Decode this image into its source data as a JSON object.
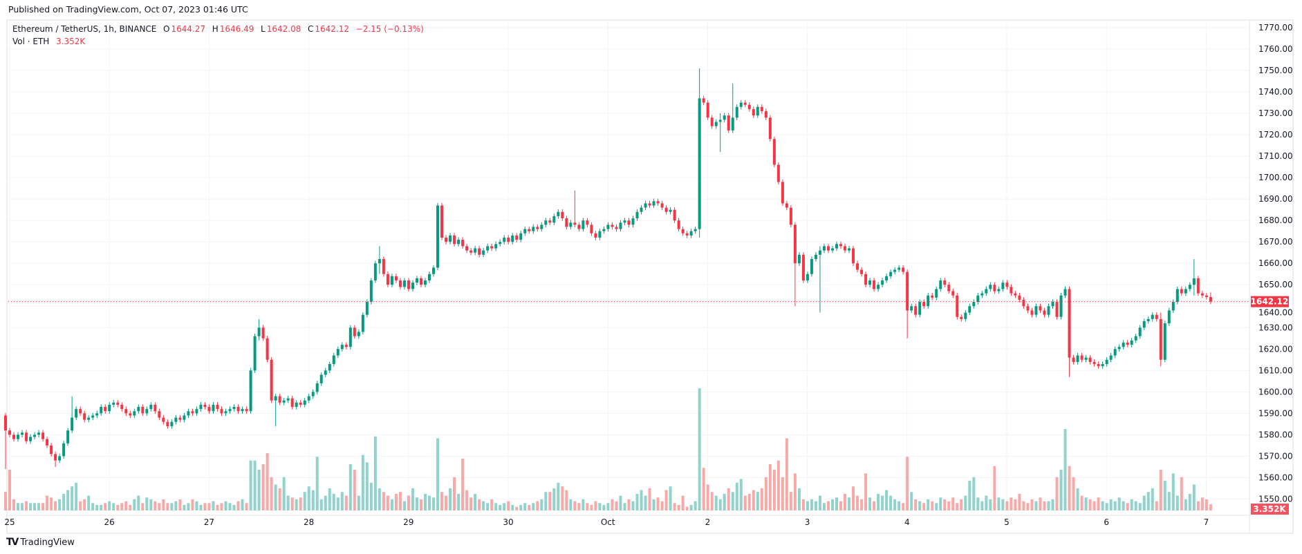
{
  "header": {
    "published": "Published on TradingView.com, Oct 07, 2023 01:46 UTC"
  },
  "legend": {
    "symbol": "Ethereum / TetherUS, 1h, BINANCE",
    "o_label": "O",
    "o": "1644.27",
    "h_label": "H",
    "h": "1646.49",
    "l_label": "L",
    "l": "1642.08",
    "c_label": "C",
    "c": "1642.12",
    "change": "−2.15 (−0.13%)",
    "vol_label": "Vol · ETH",
    "vol": "3.352K"
  },
  "footer": {
    "logo_text": "TradingView"
  },
  "colors": {
    "up": "#089981",
    "down": "#f23645",
    "vol_up": "#92d2cc",
    "vol_down": "#f7a9a7",
    "grid": "#f0f3fa",
    "vol_badge": "#f7525f"
  },
  "chart_data": {
    "type": "candlestick",
    "title": "Ethereum / TetherUS, 1h, BINANCE",
    "interval": "1h",
    "first_candle": "Sep 24 23:00",
    "ylim": [
      1545,
      1775
    ],
    "yticks": [
      "1770.00",
      "1760.00",
      "1750.00",
      "1740.00",
      "1730.00",
      "1720.00",
      "1710.00",
      "1700.00",
      "1690.00",
      "1680.00",
      "1670.00",
      "1660.00",
      "1650.00",
      "1640.00",
      "1630.00",
      "1620.00",
      "1610.00",
      "1600.00",
      "1590.00",
      "1580.00",
      "1570.00",
      "1560.00",
      "1550.00"
    ],
    "xticks": [
      "25",
      "26",
      "27",
      "28",
      "29",
      "30",
      "Oct",
      "2",
      "3",
      "4",
      "5",
      "6",
      "7"
    ],
    "grid": true,
    "first_open": 1589,
    "close": [
      1582,
      1580,
      1578,
      1580,
      1581,
      1577,
      1579,
      1580,
      1581,
      1578,
      1575,
      1571,
      1568,
      1570,
      1576,
      1582,
      1588,
      1592,
      1590,
      1587,
      1588,
      1589,
      1590,
      1593,
      1591,
      1594,
      1595,
      1594,
      1592,
      1590,
      1589,
      1591,
      1593,
      1590,
      1592,
      1594,
      1591,
      1588,
      1586,
      1584,
      1586,
      1588,
      1587,
      1589,
      1591,
      1590,
      1592,
      1594,
      1593,
      1591,
      1594,
      1592,
      1590,
      1591,
      1592,
      1593,
      1591,
      1592,
      1591,
      1610,
      1626,
      1630,
      1625,
      1615,
      1596,
      1598,
      1595,
      1596,
      1597,
      1593,
      1595,
      1594,
      1596,
      1598,
      1600,
      1604,
      1608,
      1610,
      1613,
      1617,
      1620,
      1622,
      1621,
      1630,
      1626,
      1628,
      1636,
      1642,
      1652,
      1660,
      1662,
      1655,
      1650,
      1654,
      1652,
      1649,
      1652,
      1648,
      1651,
      1653,
      1650,
      1652,
      1655,
      1658,
      1687,
      1672,
      1670,
      1673,
      1669,
      1671,
      1668,
      1666,
      1665,
      1667,
      1664,
      1666,
      1668,
      1667,
      1669,
      1670,
      1672,
      1670,
      1673,
      1671,
      1674,
      1676,
      1675,
      1677,
      1676,
      1678,
      1680,
      1679,
      1682,
      1684,
      1681,
      1677,
      1679,
      1678,
      1676,
      1680,
      1678,
      1674,
      1672,
      1675,
      1676,
      1678,
      1677,
      1676,
      1679,
      1680,
      1678,
      1681,
      1684,
      1686,
      1688,
      1687,
      1689,
      1688,
      1686,
      1684,
      1685,
      1680,
      1676,
      1674,
      1673,
      1675,
      1676,
      1737,
      1735,
      1728,
      1724,
      1726,
      1727,
      1729,
      1722,
      1728,
      1733,
      1735,
      1734,
      1732,
      1729,
      1733,
      1731,
      1728,
      1718,
      1706,
      1698,
      1688,
      1686,
      1678,
      1660,
      1664,
      1652,
      1655,
      1662,
      1664,
      1666,
      1668,
      1666,
      1667,
      1669,
      1668,
      1666,
      1667,
      1660,
      1657,
      1655,
      1650,
      1652,
      1648,
      1650,
      1652,
      1654,
      1656,
      1657,
      1658,
      1656,
      1638,
      1640,
      1636,
      1642,
      1640,
      1645,
      1644,
      1648,
      1652,
      1650,
      1647,
      1645,
      1635,
      1634,
      1637,
      1640,
      1642,
      1645,
      1646,
      1648,
      1650,
      1647,
      1648,
      1651,
      1649,
      1646,
      1645,
      1643,
      1640,
      1638,
      1636,
      1640,
      1638,
      1636,
      1640,
      1642,
      1635,
      1645,
      1648,
      1616,
      1614,
      1617,
      1615,
      1616,
      1614,
      1613,
      1612,
      1613,
      1615,
      1617,
      1620,
      1621,
      1623,
      1622,
      1624,
      1626,
      1630,
      1633,
      1634,
      1636,
      1634,
      1615,
      1632,
      1638,
      1642,
      1648,
      1646,
      1648,
      1650,
      1653,
      1646,
      1645,
      1644.27,
      1642.12
    ],
    "wick_extremes": [
      [
        0,
        1590,
        1564
      ],
      [
        12,
        1570,
        1565
      ],
      [
        16,
        1598,
        1586
      ],
      [
        61,
        1634,
        1624
      ],
      [
        65,
        1597,
        1584
      ],
      [
        90,
        1668,
        1655
      ],
      [
        104,
        1688,
        1658
      ],
      [
        137,
        1694,
        1677
      ],
      [
        167,
        1751,
        1672
      ],
      [
        175,
        1744,
        1725
      ],
      [
        172,
        1730,
        1712
      ],
      [
        190,
        1664,
        1640
      ],
      [
        196,
        1668,
        1637
      ],
      [
        217,
        1657,
        1625
      ],
      [
        256,
        1649,
        1607
      ],
      [
        278,
        1637,
        1612
      ],
      [
        286,
        1662,
        1645
      ],
      [
        290,
        1646.49,
        1642.08
      ]
    ],
    "volume_unit": "K ETH",
    "volume": [
      10,
      22,
      6,
      4,
      4,
      5,
      4,
      4,
      4,
      4,
      8,
      7,
      5,
      6,
      9,
      11,
      13,
      15,
      5,
      6,
      8,
      4,
      3,
      3,
      4,
      5,
      4,
      3,
      4,
      5,
      3,
      6,
      8,
      4,
      7,
      6,
      5,
      4,
      6,
      4,
      4,
      5,
      6,
      3,
      4,
      6,
      5,
      3,
      4,
      4,
      5,
      3,
      4,
      5,
      4,
      3,
      5,
      6,
      4,
      27,
      27,
      22,
      25,
      31,
      18,
      14,
      12,
      18,
      8,
      7,
      6,
      7,
      10,
      13,
      11,
      29,
      6,
      8,
      12,
      9,
      7,
      10,
      8,
      25,
      22,
      8,
      30,
      26,
      15,
      40,
      12,
      10,
      8,
      6,
      9,
      10,
      5,
      8,
      12,
      7,
      6,
      9,
      8,
      7,
      39,
      10,
      8,
      12,
      18,
      9,
      28,
      11,
      7,
      9,
      6,
      5,
      4,
      6,
      4,
      3,
      4,
      5,
      3,
      2,
      3,
      4,
      3,
      4,
      5,
      6,
      10,
      10,
      12,
      15,
      13,
      11,
      6,
      5,
      4,
      6,
      4,
      3,
      5,
      4,
      3,
      4,
      6,
      5,
      8,
      4,
      6,
      5,
      9,
      11,
      8,
      12,
      6,
      7,
      5,
      11,
      13,
      4,
      3,
      8,
      2,
      3,
      5,
      66,
      23,
      14,
      10,
      8,
      6,
      9,
      12,
      10,
      15,
      17,
      8,
      9,
      11,
      10,
      12,
      18,
      25,
      22,
      27,
      18,
      39,
      10,
      20,
      12,
      6,
      5,
      6,
      5,
      8,
      4,
      5,
      6,
      7,
      5,
      9,
      7,
      13,
      8,
      6,
      20,
      7,
      5,
      9,
      8,
      11,
      8,
      6,
      5,
      4,
      29,
      10,
      6,
      5,
      4,
      6,
      5,
      4,
      7,
      6,
      5,
      7,
      4,
      6,
      8,
      16,
      18,
      7,
      5,
      8,
      6,
      24,
      7,
      6,
      5,
      7,
      6,
      9,
      5,
      4,
      6,
      5,
      7,
      5,
      5,
      6,
      18,
      22,
      44,
      24,
      18,
      12,
      8,
      7,
      6,
      5,
      7,
      5,
      4,
      6,
      5,
      7,
      5,
      4,
      6,
      5,
      4,
      8,
      10,
      12,
      5,
      22,
      16,
      10,
      20,
      8,
      18,
      6,
      9,
      14,
      5,
      7,
      6,
      3.352
    ],
    "last_price": "1642.12",
    "last_volume": "3.352K"
  }
}
